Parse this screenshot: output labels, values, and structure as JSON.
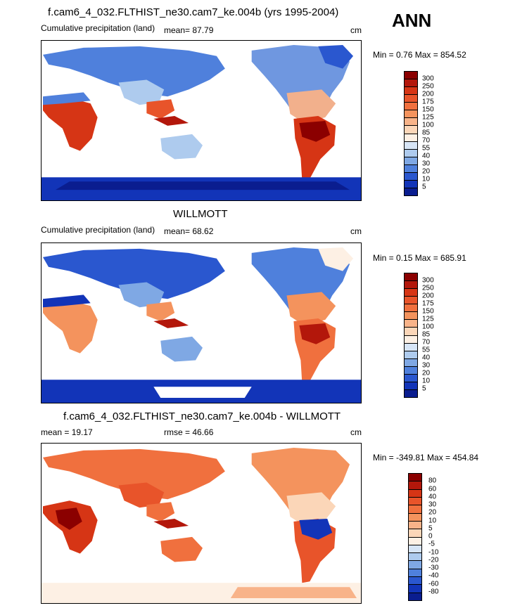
{
  "season": "ANN",
  "panels": [
    {
      "title": "f.cam6_4_032.FLTHIST_ne30.cam7_ke.004b (yrs 1995-2004)",
      "left": "Cumulative precipitation (land)",
      "mid": "mean=  87.79",
      "units": "cm",
      "minmax": "Min =   0.76 Max = 854.52",
      "colorbar": {
        "labels": [
          "300",
          "250",
          "200",
          "175",
          "150",
          "125",
          "100",
          "85",
          "70",
          "55",
          "40",
          "30",
          "20",
          "10",
          "5"
        ],
        "colors": [
          "#8b0000",
          "#b3170b",
          "#d63515",
          "#e8542a",
          "#f0703e",
          "#f4935d",
          "#f8b389",
          "#fbd6b8",
          "#fdf0e4",
          "#d7e5f6",
          "#aecbee",
          "#7fa8e4",
          "#4f80dc",
          "#2a57cf",
          "#1234b8",
          "#0a1d8f"
        ]
      }
    },
    {
      "title": "WILLMOTT",
      "left": "Cumulative precipitation (land)",
      "mid": "mean=  68.62",
      "units": "cm",
      "minmax": "Min =   0.15 Max = 685.91",
      "colorbar": {
        "labels": [
          "300",
          "250",
          "200",
          "175",
          "150",
          "125",
          "100",
          "85",
          "70",
          "55",
          "40",
          "30",
          "20",
          "10",
          "5"
        ],
        "colors": [
          "#8b0000",
          "#b3170b",
          "#d63515",
          "#e8542a",
          "#f0703e",
          "#f4935d",
          "#f8b389",
          "#fbd6b8",
          "#fdf0e4",
          "#d7e5f6",
          "#aecbee",
          "#7fa8e4",
          "#4f80dc",
          "#2a57cf",
          "#1234b8",
          "#0a1d8f"
        ]
      }
    },
    {
      "title": "f.cam6_4_032.FLTHIST_ne30.cam7_ke.004b - WILLMOTT",
      "left": "mean =   19.17",
      "mid": "rmse =   46.66",
      "units": "cm",
      "minmax": "Min = -349.81 Max = 454.84",
      "colorbar": {
        "labels": [
          "80",
          "60",
          "40",
          "30",
          "20",
          "10",
          "5",
          "0",
          "-5",
          "-10",
          "-20",
          "-30",
          "-40",
          "-60",
          "-80"
        ],
        "colors": [
          "#8b0000",
          "#b3170b",
          "#d63515",
          "#e8542a",
          "#f0703e",
          "#f4935d",
          "#f8b389",
          "#fbd6b8",
          "#fdf0e4",
          "#d7e5f6",
          "#aecbee",
          "#7fa8e4",
          "#4f80dc",
          "#2a57cf",
          "#1234b8",
          "#0a1d8f"
        ]
      }
    }
  ]
}
